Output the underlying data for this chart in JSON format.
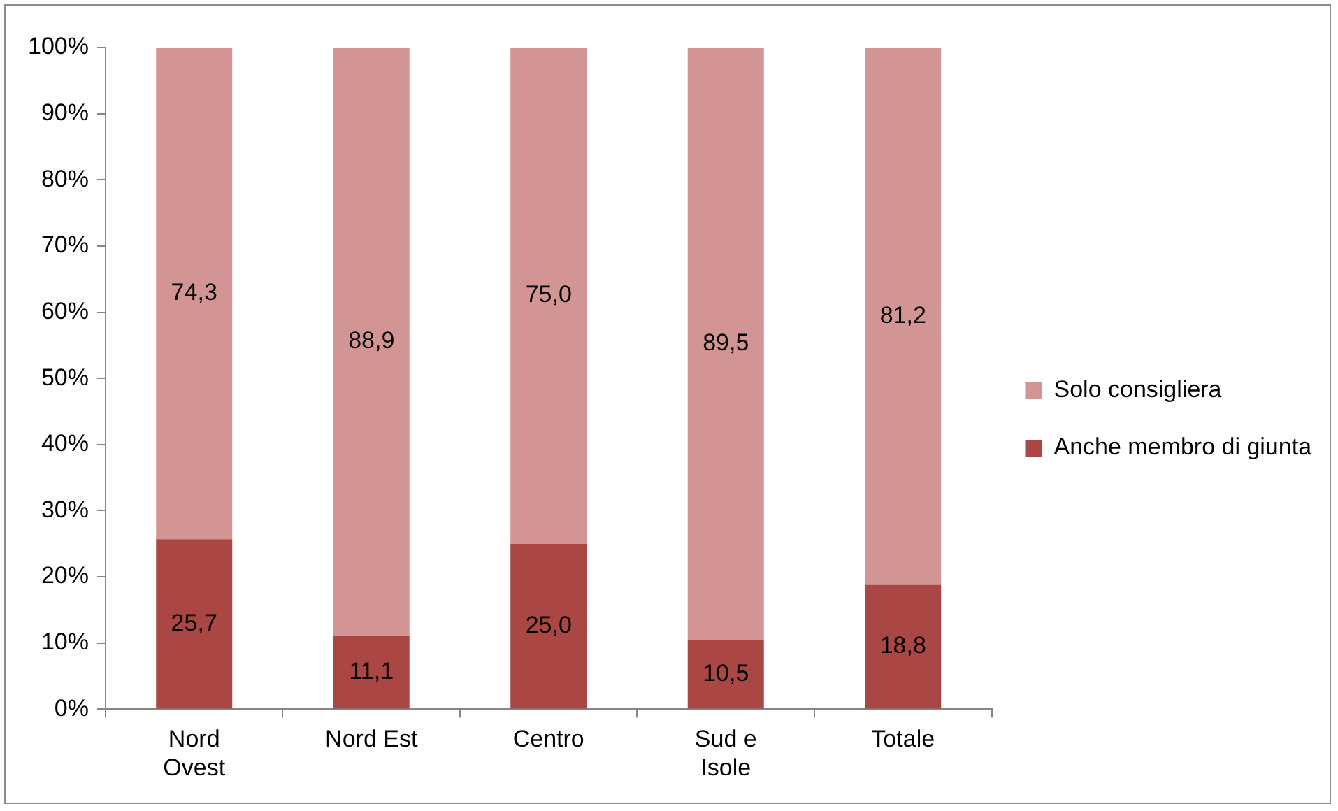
{
  "chart_data": {
    "type": "bar",
    "stacked": true,
    "categories": [
      "Nord Ovest",
      "Nord Est",
      "Centro",
      "Sud e Isole",
      "Totale"
    ],
    "series": [
      {
        "name": "Anche membro di giunta",
        "color": "#aa4643",
        "values": [
          25.7,
          11.1,
          25.0,
          10.5,
          18.8
        ],
        "value_labels": [
          "25,7",
          "11,1",
          "25,0",
          "10,5",
          "18,8"
        ]
      },
      {
        "name": "Solo consigliera",
        "color": "#d39594",
        "values": [
          74.3,
          88.9,
          75.0,
          89.5,
          81.2
        ],
        "value_labels": [
          "74,3",
          "88,9",
          "75,0",
          "89,5",
          "81,2"
        ]
      }
    ],
    "ylim": [
      0,
      100
    ],
    "yticks": [
      {
        "value": 0,
        "label": "0%"
      },
      {
        "value": 10,
        "label": "10%"
      },
      {
        "value": 20,
        "label": "20%"
      },
      {
        "value": 30,
        "label": "30%"
      },
      {
        "value": 40,
        "label": "40%"
      },
      {
        "value": 50,
        "label": "50%"
      },
      {
        "value": 60,
        "label": "60%"
      },
      {
        "value": 70,
        "label": "70%"
      },
      {
        "value": 80,
        "label": "80%"
      },
      {
        "value": 90,
        "label": "90%"
      },
      {
        "value": 100,
        "label": "100%"
      }
    ],
    "legend": "right"
  }
}
